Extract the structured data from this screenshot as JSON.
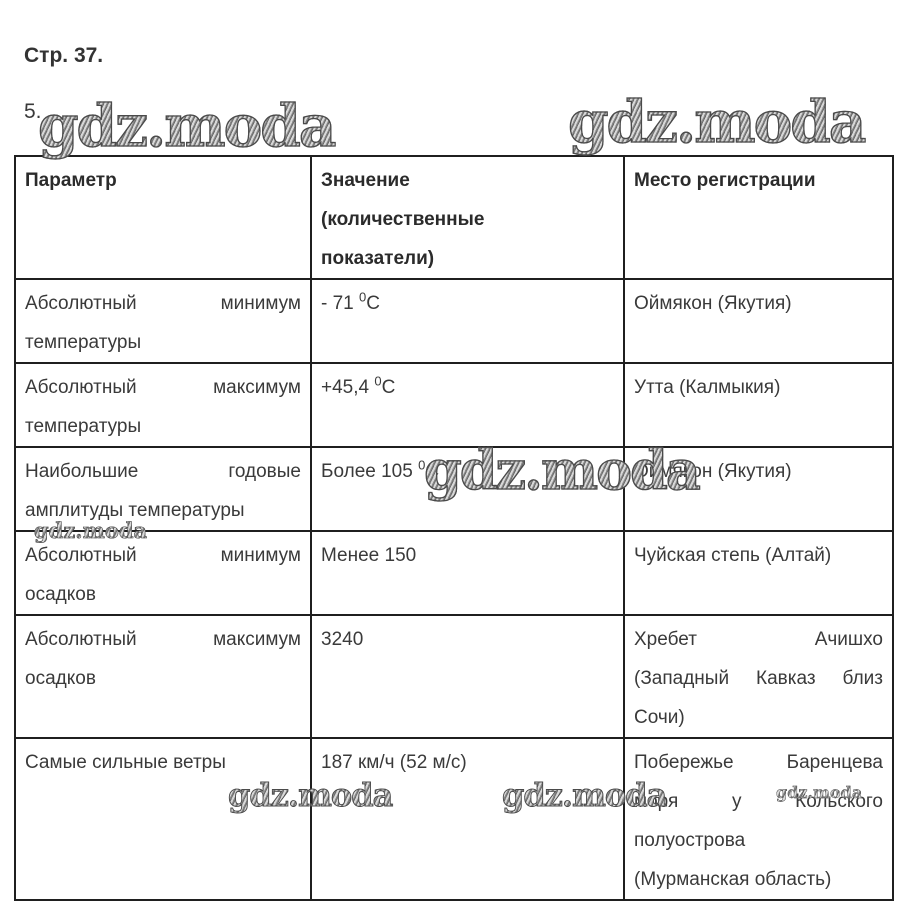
{
  "page": {
    "page_label": "Стр. 37.",
    "item_number": "5."
  },
  "watermark_text": "gdz.moda",
  "colors": {
    "text": "#3a3a3a",
    "header_text": "#2b2b2b",
    "border": "#1f1f1f",
    "watermark": "#8a8a8a",
    "background": "#ffffff"
  },
  "table": {
    "headers": [
      {
        "lines": [
          {
            "t": "Параметр"
          }
        ]
      },
      {
        "lines": [
          {
            "t": "Значение"
          },
          {
            "t": "(количественные"
          },
          {
            "t": "показатели)"
          }
        ]
      },
      {
        "lines": [
          {
            "t": "Место регистрации"
          }
        ]
      }
    ],
    "rows": [
      {
        "cells": [
          {
            "lines": [
              {
                "t": "Абсолютный минимум",
                "spread": true
              },
              {
                "t": "температуры"
              }
            ]
          },
          {
            "lines": [
              {
                "t": "- 71 ⁰С"
              }
            ]
          },
          {
            "lines": [
              {
                "t": "Оймякон (Якутия)"
              }
            ]
          }
        ]
      },
      {
        "cells": [
          {
            "lines": [
              {
                "t": "Абсолютный максимум",
                "spread": true
              },
              {
                "t": "температуры"
              }
            ]
          },
          {
            "lines": [
              {
                "t": "+45,4 ⁰С"
              }
            ]
          },
          {
            "lines": [
              {
                "t": "Утта (Калмыкия)"
              }
            ]
          }
        ]
      },
      {
        "cells": [
          {
            "lines": [
              {
                "t": "Наибольшие годовые",
                "spread": true
              },
              {
                "t": "амплитуды температуры"
              }
            ]
          },
          {
            "lines": [
              {
                "t": "Более 105 ⁰С"
              }
            ]
          },
          {
            "lines": [
              {
                "t": "Оймякон (Якутия)"
              }
            ]
          }
        ]
      },
      {
        "cells": [
          {
            "lines": [
              {
                "t": "Абсолютный минимум",
                "spread": true
              },
              {
                "t": "осадков"
              }
            ]
          },
          {
            "lines": [
              {
                "t": "Менее 150"
              }
            ]
          },
          {
            "lines": [
              {
                "t": "Чуйская степь (Алтай)"
              }
            ]
          }
        ]
      },
      {
        "cells": [
          {
            "lines": [
              {
                "t": "Абсолютный максимум",
                "spread": true
              },
              {
                "t": "осадков"
              }
            ]
          },
          {
            "lines": [
              {
                "t": "3240"
              }
            ]
          },
          {
            "lines": [
              {
                "t": "Хребет Ачишхо",
                "spread": true
              },
              {
                "t": "(Западный Кавказ близ",
                "spread": true
              },
              {
                "t": "Сочи)"
              }
            ]
          }
        ]
      },
      {
        "cells": [
          {
            "lines": [
              {
                "t": "Самые сильные ветры"
              }
            ]
          },
          {
            "lines": [
              {
                "t": "187 км/ч (52 м/с)"
              }
            ]
          },
          {
            "lines": [
              {
                "t": "Побережье Баренцева",
                "spread": true
              },
              {
                "t": "моря у Кольского",
                "spread": true
              },
              {
                "t": "полуострова"
              },
              {
                "t": "(Мурманская область)"
              }
            ]
          }
        ]
      }
    ]
  }
}
